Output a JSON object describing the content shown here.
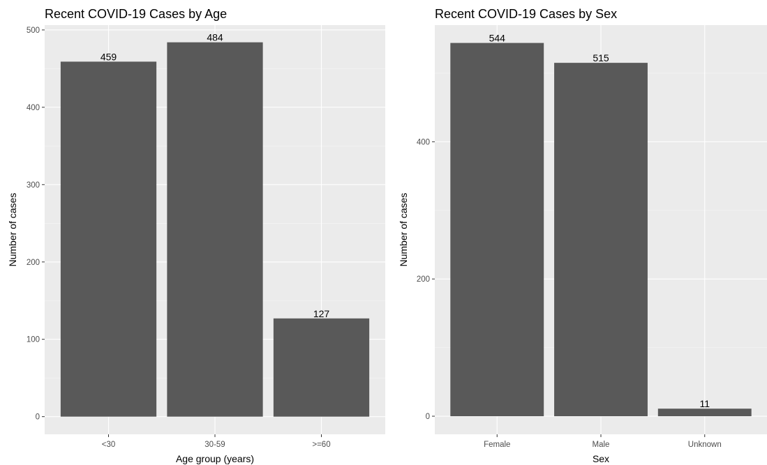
{
  "colors": {
    "panel_bg": "#ebebeb",
    "grid_major": "#ffffff",
    "grid_minor": "#f5f5f5",
    "bar_fill": "#595959",
    "tick_text": "#4d4d4d"
  },
  "chart_data": [
    {
      "type": "bar",
      "title": "Recent COVID-19 Cases by Age",
      "xlabel": "Age group (years)",
      "ylabel": "Number of cases",
      "categories": [
        "<30",
        "30-59",
        ">=60"
      ],
      "values": [
        459,
        484,
        127
      ],
      "value_labels": [
        "459",
        "484",
        "127"
      ],
      "ylim": [
        -22.85,
        506.25
      ],
      "yticks": [
        0,
        100,
        200,
        300,
        400,
        500
      ],
      "ytick_labels": [
        "0",
        "100",
        "200",
        "300",
        "400",
        "500"
      ],
      "grid": true
    },
    {
      "type": "bar",
      "title": "Recent COVID-19 Cases by Sex",
      "xlabel": "Sex",
      "ylabel": "Number of cases",
      "categories": [
        "Female",
        "Male",
        "Unknown"
      ],
      "values": [
        544,
        515,
        11
      ],
      "value_labels": [
        "544",
        "515",
        "11"
      ],
      "ylim": [
        -26.4,
        570
      ],
      "yticks": [
        0,
        200,
        400
      ],
      "ytick_labels": [
        "0",
        "200",
        "400"
      ],
      "grid": true
    }
  ]
}
